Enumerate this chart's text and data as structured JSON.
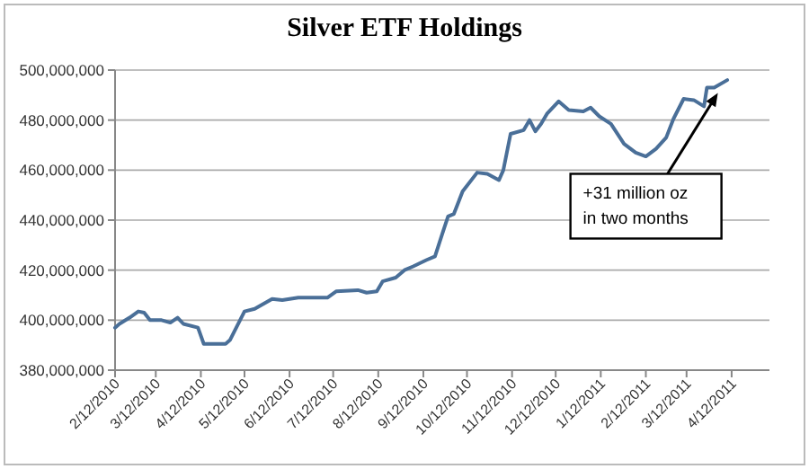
{
  "chart_data": {
    "type": "line",
    "title": "Silver ETF Holdings",
    "x": [
      "2010-02-12",
      "2010-02-15",
      "2010-02-22",
      "2010-02-28",
      "2010-03-04",
      "2010-03-08",
      "2010-03-16",
      "2010-03-22",
      "2010-03-27",
      "2010-03-31",
      "2010-04-10",
      "2010-04-14",
      "2010-04-29",
      "2010-05-02",
      "2010-05-12",
      "2010-05-19",
      "2010-05-31",
      "2010-06-07",
      "2010-06-18",
      "2010-07-08",
      "2010-07-14",
      "2010-07-29",
      "2010-08-04",
      "2010-08-11",
      "2010-08-15",
      "2010-08-24",
      "2010-08-30",
      "2010-09-05",
      "2010-09-14",
      "2010-09-20",
      "2010-09-25",
      "2010-09-29",
      "2010-10-03",
      "2010-10-09",
      "2010-10-19",
      "2010-10-26",
      "2010-11-03",
      "2010-11-06",
      "2010-11-11",
      "2010-11-20",
      "2010-11-24",
      "2010-11-28",
      "2010-12-02",
      "2010-12-06",
      "2010-12-14",
      "2010-12-21",
      "2010-12-31",
      "2011-01-05",
      "2011-01-11",
      "2011-01-19",
      "2011-01-28",
      "2011-02-05",
      "2011-02-12",
      "2011-02-19",
      "2011-02-26",
      "2011-03-03",
      "2011-03-10",
      "2011-03-17",
      "2011-03-24",
      "2011-03-26",
      "2011-03-31",
      "2011-04-09"
    ],
    "series": [
      {
        "color": "#4a6f98",
        "values": [
          397000000,
          398500000,
          401000000,
          403500000,
          403000000,
          400000000,
          400000000,
          399000000,
          401000000,
          398500000,
          397000000,
          390500000,
          390500000,
          392000000,
          403500000,
          404500000,
          408500000,
          408000000,
          409000000,
          409000000,
          411500000,
          412000000,
          411000000,
          411500000,
          415500000,
          417000000,
          420000000,
          421500000,
          424000000,
          425500000,
          434500000,
          441500000,
          442500000,
          451500000,
          459000000,
          458500000,
          456000000,
          460000000,
          474500000,
          476000000,
          480000000,
          475500000,
          478500000,
          482500000,
          487500000,
          484000000,
          483500000,
          485000000,
          481500000,
          478500000,
          470500000,
          467000000,
          465500000,
          468500000,
          473000000,
          480500000,
          488500000,
          488000000,
          485500000,
          493000000,
          493000000,
          496000000
        ]
      }
    ],
    "xlim": [
      "2010-02-12",
      "2011-05-08"
    ],
    "xticks": [
      {
        "value": "2010-02-12",
        "label": "2/12/2010"
      },
      {
        "value": "2010-03-12",
        "label": "3/12/2010"
      },
      {
        "value": "2010-04-12",
        "label": "4/12/2010"
      },
      {
        "value": "2010-05-12",
        "label": "5/12/2010"
      },
      {
        "value": "2010-06-12",
        "label": "6/12/2010"
      },
      {
        "value": "2010-07-12",
        "label": "7/12/2010"
      },
      {
        "value": "2010-08-12",
        "label": "8/12/2010"
      },
      {
        "value": "2010-09-12",
        "label": "9/12/2010"
      },
      {
        "value": "2010-10-12",
        "label": "10/12/2010"
      },
      {
        "value": "2010-11-12",
        "label": "11/12/2010"
      },
      {
        "value": "2010-12-12",
        "label": "12/12/2010"
      },
      {
        "value": "2011-01-12",
        "label": "1/12/2011"
      },
      {
        "value": "2011-02-12",
        "label": "2/12/2011"
      },
      {
        "value": "2011-03-12",
        "label": "3/12/2011"
      },
      {
        "value": "2011-04-12",
        "label": "4/12/2011"
      }
    ],
    "ylim": [
      380000000,
      500000000
    ],
    "yticks": [
      {
        "value": 380000000,
        "label": "380,000,000"
      },
      {
        "value": 400000000,
        "label": "400,000,000"
      },
      {
        "value": 420000000,
        "label": "420,000,000"
      },
      {
        "value": 440000000,
        "label": "440,000,000"
      },
      {
        "value": 460000000,
        "label": "460,000,000"
      },
      {
        "value": 480000000,
        "label": "480,000,000"
      },
      {
        "value": 500000000,
        "label": "500,000,000"
      }
    ],
    "grid": "y",
    "marker": "none",
    "line_style": "solid",
    "annotations": [
      {
        "text": "+31 million oz\nin two months",
        "x": "2011-04-05",
        "y": 493000000
      }
    ]
  }
}
